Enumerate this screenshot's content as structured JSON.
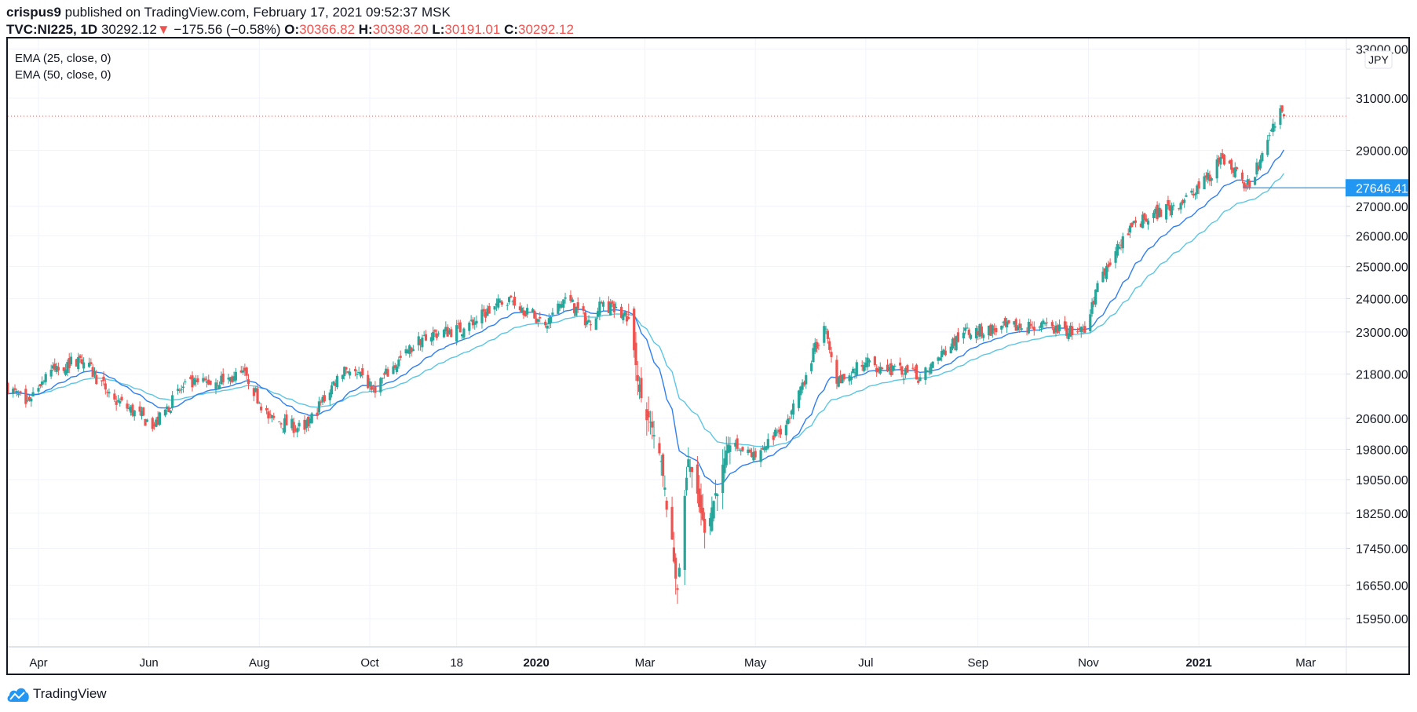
{
  "header": {
    "author": "crispus9",
    "published": "published on TradingView.com, February 17, 2021 09:52:37 MSK",
    "symbol": "TVC:NI225, 1D",
    "last": "30292.12",
    "change": "−175.56 (−0.58%)",
    "o_label": "O:",
    "o": "30366.82",
    "h_label": "H:",
    "h": "30398.20",
    "l_label": "L:",
    "l": "30191.01",
    "c_label": "C:",
    "c": "30292.12",
    "down_icon": "triangle-down-icon"
  },
  "legend": [
    "EMA (25, close, 0)",
    "EMA (50, close, 0)"
  ],
  "currency": "JPY",
  "brand": "TradingView",
  "colors": {
    "up": "#26a69a",
    "down": "#ef5350",
    "ema25": "#2f7ff0",
    "ema50": "#5cc6e4",
    "marker": "#2196f3"
  },
  "chart_data": {
    "type": "candlestick",
    "scale": "log",
    "ylim": [
      15600,
      33400
    ],
    "price_ticks": [
      "33000.00",
      "31000.00",
      "29000.00",
      "27000.00",
      "26000.00",
      "25000.00",
      "24000.00",
      "23000.00",
      "21800.00",
      "20600.00",
      "19800.00",
      "19050.00",
      "18250.00",
      "17450.00",
      "16650.00",
      "15950.00"
    ],
    "x_ticks": [
      {
        "label": "Apr",
        "date": "2019-04-01",
        "bold": false
      },
      {
        "label": "Jun",
        "date": "2019-06-01",
        "bold": false
      },
      {
        "label": "Aug",
        "date": "2019-08-01",
        "bold": false
      },
      {
        "label": "Oct",
        "date": "2019-10-01",
        "bold": false
      },
      {
        "label": "18",
        "date": "2019-11-18",
        "bold": false
      },
      {
        "label": "2020",
        "date": "2020-01-01",
        "bold": true
      },
      {
        "label": "Mar",
        "date": "2020-03-01",
        "bold": false
      },
      {
        "label": "May",
        "date": "2020-05-01",
        "bold": false
      },
      {
        "label": "Jul",
        "date": "2020-07-01",
        "bold": false
      },
      {
        "label": "Sep",
        "date": "2020-09-01",
        "bold": false
      },
      {
        "label": "Nov",
        "date": "2020-11-01",
        "bold": false
      },
      {
        "label": "2021",
        "date": "2021-01-01",
        "bold": true
      },
      {
        "label": "Mar",
        "date": "2021-03-01",
        "bold": false
      }
    ],
    "x_range": [
      "2019-03-15",
      "2021-03-31"
    ],
    "close_anchors": [
      [
        "2019-03-15",
        21450
      ],
      [
        "2019-03-25",
        20980
      ],
      [
        "2019-04-05",
        21800
      ],
      [
        "2019-04-24",
        22250
      ],
      [
        "2019-05-13",
        21100
      ],
      [
        "2019-06-04",
        20400
      ],
      [
        "2019-06-20",
        21450
      ],
      [
        "2019-07-25",
        21750
      ],
      [
        "2019-08-06",
        20600
      ],
      [
        "2019-08-26",
        20300
      ],
      [
        "2019-09-17",
        22000
      ],
      [
        "2019-10-03",
        21400
      ],
      [
        "2019-10-31",
        22900
      ],
      [
        "2019-11-22",
        23100
      ],
      [
        "2019-12-17",
        24050
      ],
      [
        "2020-01-06",
        23200
      ],
      [
        "2020-01-17",
        24040
      ],
      [
        "2020-01-31",
        23200
      ],
      [
        "2020-02-06",
        23870
      ],
      [
        "2020-02-21",
        23390
      ],
      [
        "2020-02-28",
        21140
      ],
      [
        "2020-03-09",
        19700
      ],
      [
        "2020-03-19",
        16550
      ],
      [
        "2020-03-25",
        19550
      ],
      [
        "2020-04-03",
        17800
      ],
      [
        "2020-04-17",
        19900
      ],
      [
        "2020-05-01",
        19600
      ],
      [
        "2020-05-20",
        20600
      ],
      [
        "2020-06-08",
        23178
      ],
      [
        "2020-06-15",
        21530
      ],
      [
        "2020-07-01",
        22120
      ],
      [
        "2020-07-31",
        21710
      ],
      [
        "2020-08-24",
        22980
      ],
      [
        "2020-09-30",
        23185
      ],
      [
        "2020-10-30",
        22977
      ],
      [
        "2020-11-09",
        24840
      ],
      [
        "2020-11-25",
        26300
      ],
      [
        "2020-12-30",
        27444
      ],
      [
        "2021-01-14",
        28700
      ],
      [
        "2021-01-29",
        27663
      ],
      [
        "2021-02-08",
        29390
      ],
      [
        "2021-02-16",
        30467
      ],
      [
        "2021-02-17",
        30292.12
      ]
    ],
    "last_bar": {
      "date": "2021-02-17",
      "open": 30366.82,
      "high": 30398.2,
      "low": 30191.01,
      "close": 30292.12
    },
    "current_price": 30292.12,
    "marker_line": {
      "price": 27646.41,
      "label": "27646.41",
      "from": "2021-01-29"
    },
    "indicators": [
      {
        "name": "EMA",
        "length": 25
      },
      {
        "name": "EMA",
        "length": 50
      }
    ]
  }
}
